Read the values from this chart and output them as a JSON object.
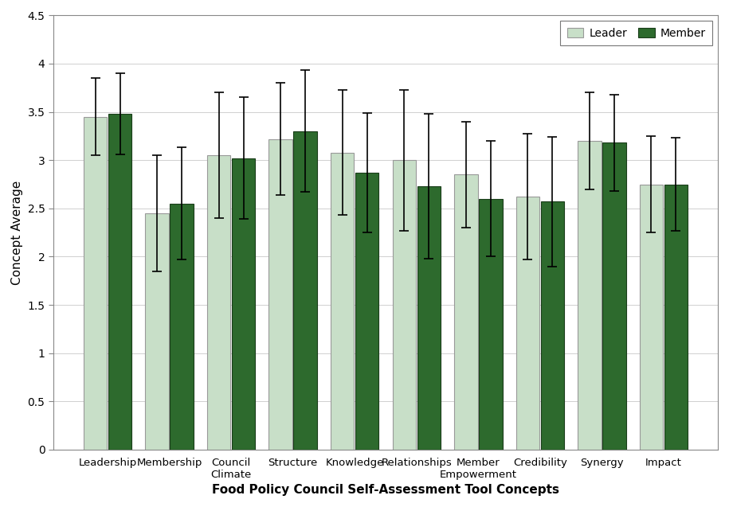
{
  "categories": [
    "Leadership",
    "Membership",
    "Council\nClimate",
    "Structure",
    "Knowledge",
    "Relationships",
    "Member\nEmpowerment",
    "Credibility",
    "Synergy",
    "Impact"
  ],
  "leader_means": [
    3.45,
    2.45,
    3.05,
    3.22,
    3.08,
    3.0,
    2.85,
    2.62,
    3.2,
    2.75
  ],
  "member_means": [
    3.48,
    2.55,
    3.02,
    3.3,
    2.87,
    2.73,
    2.6,
    2.57,
    3.18,
    2.75
  ],
  "leader_errors": [
    0.4,
    0.6,
    0.65,
    0.58,
    0.65,
    0.73,
    0.55,
    0.65,
    0.5,
    0.5
  ],
  "member_errors": [
    0.42,
    0.58,
    0.63,
    0.63,
    0.62,
    0.75,
    0.6,
    0.67,
    0.5,
    0.48
  ],
  "leader_color": "#c8dfc8",
  "member_color": "#2d6a2d",
  "leader_edge": "#999999",
  "member_edge": "#1a3d1a",
  "bar_width": 0.38,
  "ylim": [
    0,
    4.5
  ],
  "yticks": [
    0,
    0.5,
    1.0,
    1.5,
    2.0,
    2.5,
    3.0,
    3.5,
    4.0,
    4.5
  ],
  "ylabel": "Concept Average",
  "xlabel": "Food Policy Council Self-Assessment Tool Concepts",
  "legend_labels": [
    "Leader",
    "Member"
  ],
  "error_color": "black",
  "error_linewidth": 1.2,
  "capsize": 4
}
